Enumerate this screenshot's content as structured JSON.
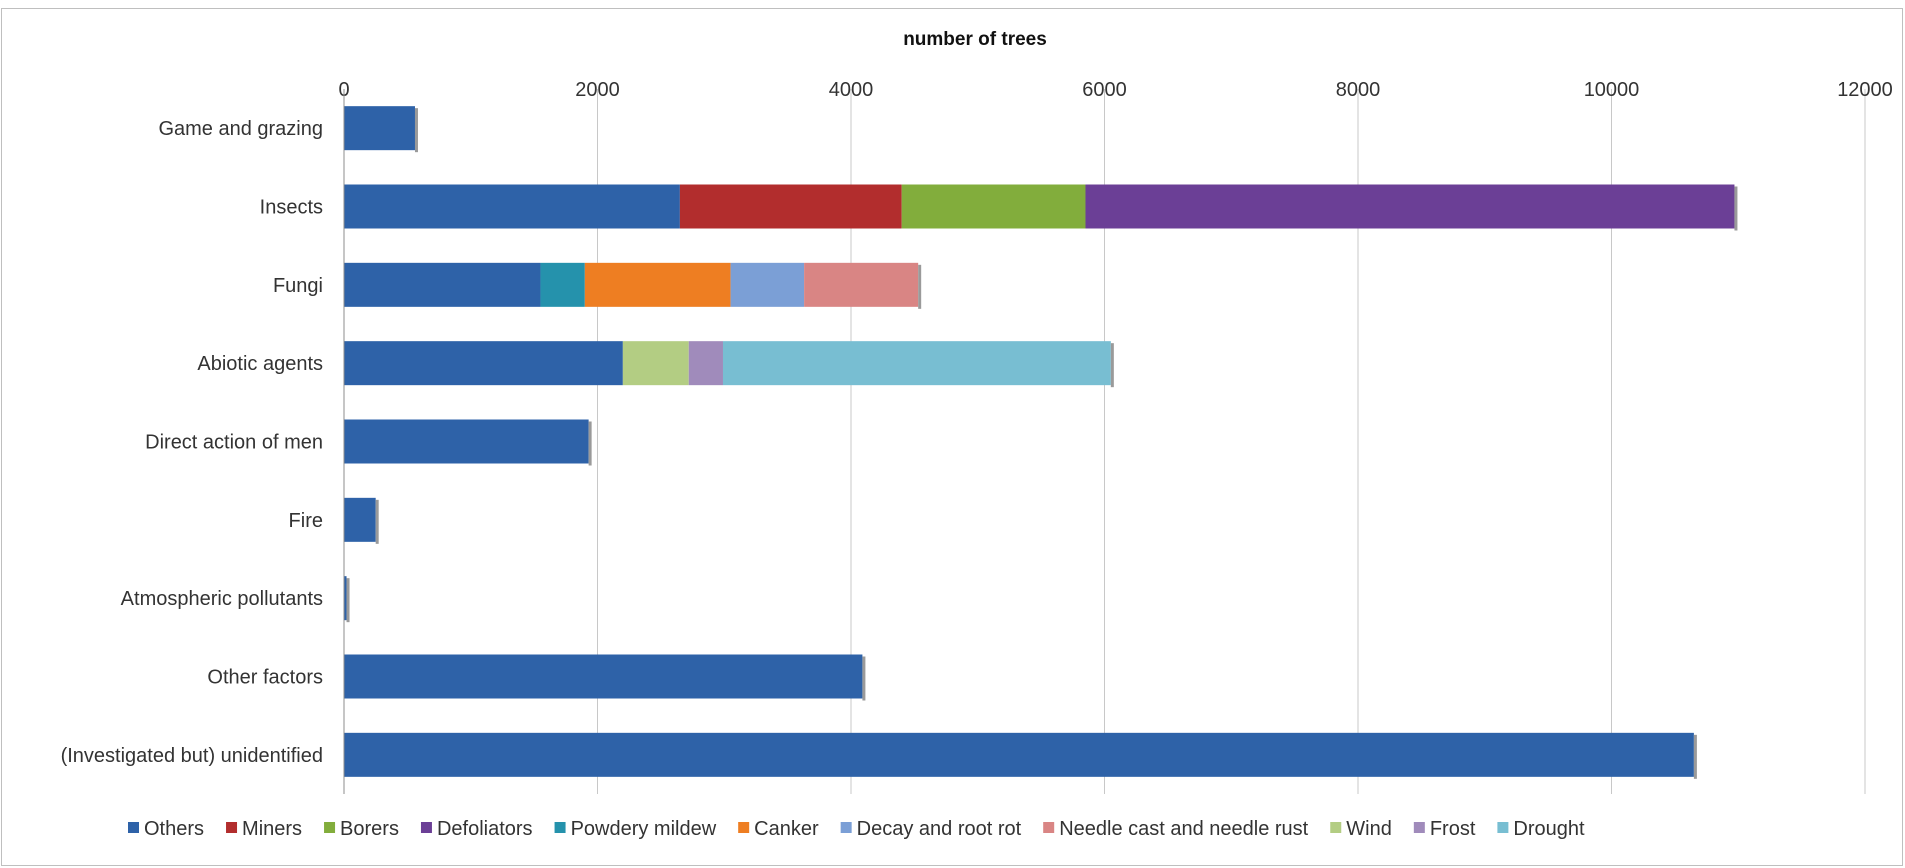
{
  "chart_data": {
    "type": "bar",
    "orientation": "horizontal",
    "stacked": true,
    "title": "",
    "xlabel": "number of trees",
    "ylabel": "",
    "xlim": [
      0,
      12000
    ],
    "xticks": [
      0,
      2000,
      4000,
      6000,
      8000,
      10000,
      12000
    ],
    "x_axis_position": "top",
    "grid": true,
    "legend_position": "bottom",
    "categories": [
      "Game and grazing",
      "Insects",
      "Fungi",
      "Abiotic agents",
      "Direct action of men",
      "Fire",
      "Atmospheric pollutants",
      "Other factors",
      "(Investigated but) unidentified"
    ],
    "series": [
      {
        "name": "Others",
        "color": "#2e62a8",
        "values": [
          560,
          2650,
          1550,
          2200,
          1930,
          250,
          20,
          4090,
          10650
        ]
      },
      {
        "name": "Miners",
        "color": "#b22d2d",
        "values": [
          0,
          1750,
          0,
          0,
          0,
          0,
          0,
          0,
          0
        ]
      },
      {
        "name": "Borers",
        "color": "#82ad3c",
        "values": [
          0,
          1450,
          0,
          0,
          0,
          0,
          0,
          0,
          0
        ]
      },
      {
        "name": "Defoliators",
        "color": "#6b3f96",
        "values": [
          0,
          5120,
          0,
          0,
          0,
          0,
          0,
          0,
          0
        ]
      },
      {
        "name": "Powdery mildew",
        "color": "#2592ac",
        "values": [
          0,
          0,
          350,
          0,
          0,
          0,
          0,
          0,
          0
        ]
      },
      {
        "name": "Canker",
        "color": "#ee7e22",
        "values": [
          0,
          0,
          1150,
          0,
          0,
          0,
          0,
          0,
          0
        ]
      },
      {
        "name": "Decay and root rot",
        "color": "#7b9fd6",
        "values": [
          0,
          0,
          580,
          0,
          0,
          0,
          0,
          0,
          0
        ]
      },
      {
        "name": "Needle cast and needle rust",
        "color": "#d98584",
        "values": [
          0,
          0,
          900,
          0,
          0,
          0,
          0,
          0,
          0
        ]
      },
      {
        "name": "Wind",
        "color": "#b3cd83",
        "values": [
          0,
          0,
          0,
          520,
          0,
          0,
          0,
          0,
          0
        ]
      },
      {
        "name": "Frost",
        "color": "#a08bbb",
        "values": [
          0,
          0,
          0,
          270,
          0,
          0,
          0,
          0,
          0
        ]
      },
      {
        "name": "Drought",
        "color": "#78bed2",
        "values": [
          0,
          0,
          0,
          3060,
          0,
          0,
          0,
          0,
          0
        ]
      }
    ]
  }
}
